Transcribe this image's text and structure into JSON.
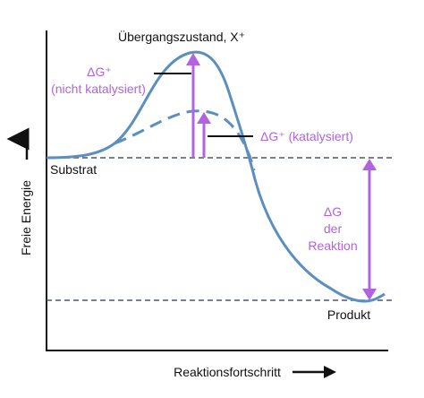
{
  "labels": {
    "transition_state": "Übergangszustand, X⁺",
    "dg_uncat_line1": "ΔG⁺",
    "dg_uncat_line2": "(nicht katalysiert)",
    "dg_cat": "ΔG⁺ (katalysiert)",
    "substrat": "Substrat",
    "product": "Produkt",
    "dg_reaction_line1": "ΔG",
    "dg_reaction_line2": "der",
    "dg_reaction_line3": "Reaktion",
    "y_axis": "Freie Energie",
    "x_axis": "Reaktionsfortschritt"
  },
  "colors": {
    "curve": "#5b8fbf",
    "accent": "#b163e0",
    "axis": "#111111",
    "dashed": "#4a5670"
  }
}
